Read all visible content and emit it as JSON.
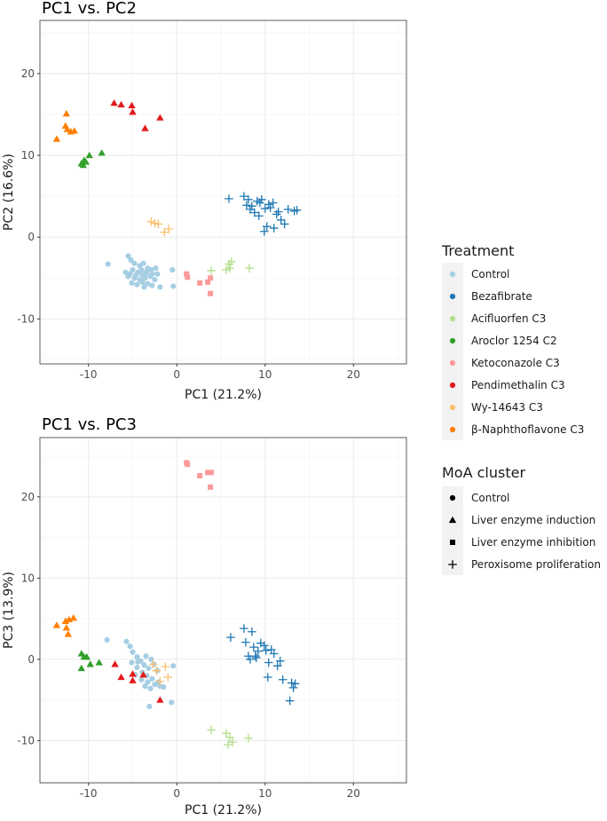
{
  "colors": {
    "Control": "#a6cee3",
    "Bezafibrate": "#1f78b4",
    "Acifluorfen C3": "#b2df8a",
    "Aroclor 1254 C2": "#33a02c",
    "Ketoconazole C3": "#fb9a99",
    "Pendimethalin C3": "#e31a1c",
    "Wy-14643 C3": "#fdbf6f",
    "β-Naphthoflavone C3": "#ff7f00"
  },
  "legend": {
    "treatment_title": "Treatment",
    "treatment_items": [
      "Control",
      "Bezafibrate",
      "Acifluorfen C3",
      "Aroclor 1254 C2",
      "Ketoconazole C3",
      "Pendimethalin C3",
      "Wy-14643 C3",
      "β-Naphthoflavone C3"
    ],
    "moa_title": "MoA cluster",
    "moa_items": [
      {
        "label": "Control",
        "shape": "circle"
      },
      {
        "label": "Liver enzyme induction",
        "shape": "triangle"
      },
      {
        "label": "Liver enzyme inhibition",
        "shape": "square"
      },
      {
        "label": "Peroxisome proliferation",
        "shape": "plus"
      }
    ]
  },
  "chart_data": [
    {
      "type": "scatter",
      "title": "PC1 vs. PC2",
      "xlabel": "PC1 (21.2%)",
      "ylabel": "PC2 (16.6%)",
      "xlim": [
        -15.5,
        26
      ],
      "ylim": [
        -15.5,
        26.5
      ],
      "xticks": [
        -10,
        0,
        10,
        20
      ],
      "xtick_labels": [
        "-10",
        "0",
        "10",
        "20"
      ],
      "yticks": [
        -10,
        0,
        10,
        20
      ],
      "ytick_labels": [
        "-10",
        "0",
        "10",
        "20"
      ],
      "groups": [
        {
          "treatment": "Control",
          "shape": "circle",
          "points": [
            [
              -7.8,
              -3.3
            ],
            [
              -5.5,
              -2.3
            ],
            [
              -5.2,
              -2.8
            ],
            [
              -4.8,
              -3.2
            ],
            [
              -4.2,
              -3.5
            ],
            [
              -3.8,
              -3.2
            ],
            [
              -3.3,
              -3.8
            ],
            [
              -5.8,
              -4.3
            ],
            [
              -5.0,
              -4.0
            ],
            [
              -4.4,
              -4.3
            ],
            [
              -3.9,
              -4.6
            ],
            [
              -3.4,
              -4.2
            ],
            [
              -2.9,
              -4.0
            ],
            [
              -2.4,
              -3.8
            ],
            [
              -5.5,
              -4.8
            ],
            [
              -4.8,
              -5.0
            ],
            [
              -4.2,
              -5.2
            ],
            [
              -3.6,
              -5.0
            ],
            [
              -3.0,
              -4.8
            ],
            [
              -2.5,
              -5.2
            ],
            [
              -5.1,
              -5.6
            ],
            [
              -4.5,
              -5.8
            ],
            [
              -3.9,
              -5.5
            ],
            [
              -3.3,
              -5.7
            ],
            [
              -2.8,
              -5.9
            ],
            [
              -4.0,
              -4.0
            ],
            [
              -3.5,
              -4.4
            ],
            [
              -2.8,
              -4.5
            ],
            [
              -4.6,
              -4.6
            ],
            [
              -5.3,
              -4.5
            ],
            [
              -1.9,
              -6.1
            ],
            [
              -0.4,
              -6.0
            ],
            [
              -0.5,
              -4.0
            ],
            [
              -2.2,
              -4.5
            ],
            [
              -3.7,
              -6.1
            ]
          ]
        },
        {
          "treatment": "Bezafibrate",
          "shape": "plus",
          "points": [
            [
              5.9,
              4.7
            ],
            [
              7.6,
              5.0
            ],
            [
              8.1,
              4.6
            ],
            [
              8.5,
              3.8
            ],
            [
              9.1,
              4.4
            ],
            [
              9.6,
              4.6
            ],
            [
              10.0,
              3.5
            ],
            [
              10.4,
              4.0
            ],
            [
              10.9,
              4.2
            ],
            [
              11.3,
              2.8
            ],
            [
              11.8,
              2.1
            ],
            [
              12.2,
              1.6
            ],
            [
              12.6,
              3.4
            ],
            [
              13.3,
              3.2
            ],
            [
              13.6,
              3.3
            ],
            [
              8.3,
              3.4
            ],
            [
              8.8,
              3.0
            ],
            [
              9.3,
              2.6
            ],
            [
              9.9,
              0.7
            ],
            [
              10.2,
              1.3
            ],
            [
              11.0,
              1.1
            ],
            [
              7.9,
              3.9
            ],
            [
              9.4,
              4.2
            ],
            [
              10.6,
              3.6
            ],
            [
              11.5,
              3.1
            ]
          ]
        },
        {
          "treatment": "Acifluorfen C3",
          "shape": "plus",
          "points": [
            [
              3.9,
              -4.1
            ],
            [
              5.6,
              -4.0
            ],
            [
              5.9,
              -3.3
            ],
            [
              6.2,
              -3.0
            ],
            [
              6.0,
              -3.8
            ],
            [
              8.2,
              -3.8
            ]
          ]
        },
        {
          "treatment": "Aroclor 1254 C2",
          "shape": "triangle",
          "points": [
            [
              -10.8,
              9.0
            ],
            [
              -10.5,
              9.4
            ],
            [
              -10.3,
              9.2
            ],
            [
              -10.6,
              8.8
            ],
            [
              -9.9,
              10.0
            ],
            [
              -8.5,
              10.3
            ]
          ]
        },
        {
          "treatment": "Ketoconazole C3",
          "shape": "square",
          "points": [
            [
              1.1,
              -4.5
            ],
            [
              1.2,
              -4.9
            ],
            [
              2.6,
              -5.6
            ],
            [
              3.5,
              -5.5
            ],
            [
              3.8,
              -5.0
            ],
            [
              3.8,
              -6.9
            ]
          ]
        },
        {
          "treatment": "Pendimethalin C3",
          "shape": "triangle",
          "points": [
            [
              -7.1,
              16.4
            ],
            [
              -6.3,
              16.2
            ],
            [
              -5.1,
              16.1
            ],
            [
              -5.0,
              15.3
            ],
            [
              -3.6,
              13.3
            ],
            [
              -1.9,
              14.6
            ]
          ]
        },
        {
          "treatment": "Wy-14643 C3",
          "shape": "plus",
          "points": [
            [
              -2.9,
              1.9
            ],
            [
              -2.5,
              1.7
            ],
            [
              -2.1,
              1.6
            ],
            [
              -1.4,
              0.6
            ],
            [
              -0.9,
              1.0
            ]
          ]
        },
        {
          "treatment": "β-Naphthoflavone C3",
          "shape": "triangle",
          "points": [
            [
              -13.6,
              12.0
            ],
            [
              -12.6,
              13.6
            ],
            [
              -12.5,
              15.1
            ],
            [
              -12.4,
              13.2
            ],
            [
              -12.0,
              12.9
            ],
            [
              -11.6,
              13.0
            ]
          ]
        }
      ]
    },
    {
      "type": "scatter",
      "title": "PC1 vs. PC3",
      "xlabel": "PC1 (21.2%)",
      "ylabel": "PC3 (13.9%)",
      "xlim": [
        -15.5,
        26
      ],
      "ylim": [
        -15.2,
        27.3
      ],
      "xticks": [
        -10,
        0,
        10,
        20
      ],
      "xtick_labels": [
        "-10",
        "0",
        "10",
        "20"
      ],
      "yticks": [
        -10,
        0,
        10,
        20
      ],
      "ytick_labels": [
        "-10",
        "0",
        "10",
        "20"
      ],
      "groups": [
        {
          "treatment": "Control",
          "shape": "circle",
          "points": [
            [
              -7.9,
              2.4
            ],
            [
              -5.7,
              2.2
            ],
            [
              -5.3,
              1.6
            ],
            [
              -5.0,
              0.9
            ],
            [
              -4.5,
              0.3
            ],
            [
              -4.1,
              -0.2
            ],
            [
              -3.7,
              -0.7
            ],
            [
              -3.2,
              -1.1
            ],
            [
              -2.6,
              -0.6
            ],
            [
              -2.2,
              -1.4
            ],
            [
              -5.1,
              -0.4
            ],
            [
              -4.5,
              -1.0
            ],
            [
              -3.9,
              -1.6
            ],
            [
              -3.4,
              -2.0
            ],
            [
              -2.8,
              -2.4
            ],
            [
              -4.7,
              -1.9
            ],
            [
              -4.0,
              -2.5
            ],
            [
              -3.3,
              -2.8
            ],
            [
              -2.5,
              -3.1
            ],
            [
              -1.9,
              -3.3
            ],
            [
              -3.6,
              -3.3
            ],
            [
              -3.0,
              -3.6
            ],
            [
              -2.1,
              -2.8
            ],
            [
              -1.5,
              -3.4
            ],
            [
              -0.4,
              -0.8
            ],
            [
              -0.6,
              -5.3
            ],
            [
              -3.1,
              -5.8
            ],
            [
              -3.5,
              0.4
            ],
            [
              -2.9,
              0.0
            ],
            [
              -4.4,
              -0.3
            ]
          ]
        },
        {
          "treatment": "Bezafibrate",
          "shape": "plus",
          "points": [
            [
              6.1,
              2.7
            ],
            [
              7.6,
              3.8
            ],
            [
              7.8,
              2.1
            ],
            [
              8.1,
              0.4
            ],
            [
              8.3,
              0.0
            ],
            [
              8.5,
              3.4
            ],
            [
              8.7,
              1.5
            ],
            [
              9.2,
              1.0
            ],
            [
              9.5,
              2.0
            ],
            [
              9.9,
              1.7
            ],
            [
              10.1,
              1.1
            ],
            [
              10.4,
              -0.4
            ],
            [
              10.7,
              1.2
            ],
            [
              11.0,
              0.7
            ],
            [
              11.4,
              -0.8
            ],
            [
              11.7,
              -0.2
            ],
            [
              12.0,
              -2.5
            ],
            [
              12.8,
              -5.1
            ],
            [
              13.2,
              -3.5
            ],
            [
              13.4,
              -3.0
            ],
            [
              13.0,
              -2.9
            ],
            [
              9.0,
              0.2
            ],
            [
              10.3,
              -2.2
            ],
            [
              8.9,
              0.4
            ]
          ]
        },
        {
          "treatment": "Acifluorfen C3",
          "shape": "plus",
          "points": [
            [
              3.9,
              -8.7
            ],
            [
              5.6,
              -9.1
            ],
            [
              5.8,
              -10.5
            ],
            [
              6.0,
              -9.6
            ],
            [
              6.3,
              -10.2
            ],
            [
              8.1,
              -9.7
            ]
          ]
        },
        {
          "treatment": "Aroclor 1254 C2",
          "shape": "triangle",
          "points": [
            [
              -10.8,
              0.7
            ],
            [
              -10.5,
              0.3
            ],
            [
              -10.8,
              -1.1
            ],
            [
              -10.2,
              0.3
            ],
            [
              -9.8,
              -0.6
            ],
            [
              -8.8,
              -0.4
            ]
          ]
        },
        {
          "treatment": "Ketoconazole C3",
          "shape": "square",
          "points": [
            [
              1.1,
              24.2
            ],
            [
              1.2,
              24.0
            ],
            [
              2.6,
              22.6
            ],
            [
              3.5,
              23.0
            ],
            [
              3.9,
              23.0
            ],
            [
              3.8,
              21.2
            ]
          ]
        },
        {
          "treatment": "Pendimethalin C3",
          "shape": "triangle",
          "points": [
            [
              -7.0,
              -0.6
            ],
            [
              -6.3,
              -2.2
            ],
            [
              -5.0,
              -1.8
            ],
            [
              -5.0,
              -2.6
            ],
            [
              -3.8,
              -1.9
            ],
            [
              -1.9,
              -5.0
            ]
          ]
        },
        {
          "treatment": "Wy-14643 C3",
          "shape": "plus",
          "points": [
            [
              -2.7,
              -0.6
            ],
            [
              -2.3,
              -1.4
            ],
            [
              -1.9,
              -2.7
            ],
            [
              -1.3,
              -0.9
            ],
            [
              -1.0,
              -2.2
            ]
          ]
        },
        {
          "treatment": "β-Naphthoflavone C3",
          "shape": "triangle",
          "points": [
            [
              -13.6,
              4.2
            ],
            [
              -12.6,
              4.7
            ],
            [
              -12.5,
              3.9
            ],
            [
              -12.3,
              3.1
            ],
            [
              -12.2,
              4.9
            ],
            [
              -11.7,
              5.1
            ]
          ]
        }
      ]
    }
  ]
}
